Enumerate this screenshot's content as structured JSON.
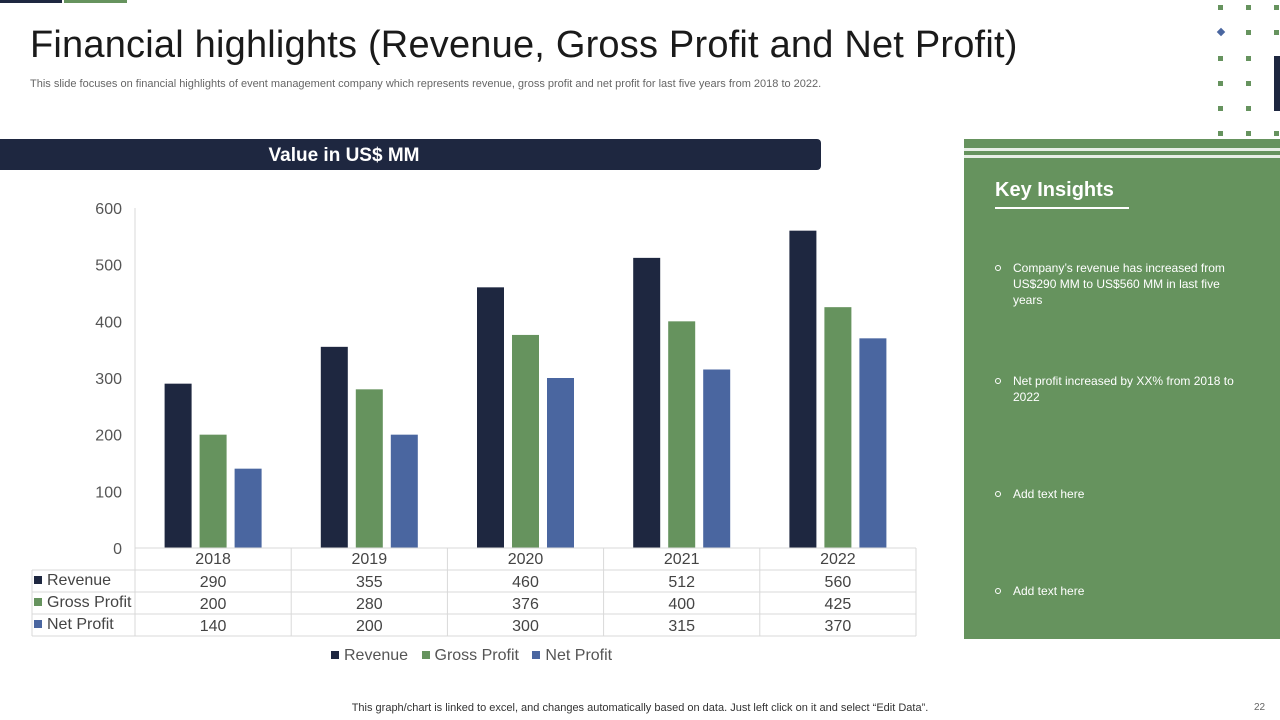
{
  "slide": {
    "title": "Financial highlights (Revenue, Gross Profit and Net Profit)",
    "subtitle": "This slide focuses on financial highlights of event management company which represents revenue, gross profit and net profit for last five  years from 2018 to  2022.",
    "footer": "This graph/chart is linked to excel,  and changes automatically based on data. Just left click on it and select “Edit Data”.",
    "page_number": "22"
  },
  "banner": {
    "label": "Value in US$ MM"
  },
  "insights": {
    "title": "Key Insights",
    "items": [
      "Company’s revenue  has increased from US$290  MM to US$560  MM in last five  years",
      "Net profit increased  by XX%  from 2018 to 2022",
      "Add text here",
      "Add text here"
    ]
  },
  "colors": {
    "revenue": "#1e2740",
    "gross_profit": "#66935e",
    "net_profit": "#4a66a0",
    "dark": "#1e2740",
    "green": "#66935e"
  },
  "chart_data": {
    "type": "bar",
    "title": "Value in US$ MM",
    "categories": [
      "2018",
      "2019",
      "2020",
      "2021",
      "2022"
    ],
    "series": [
      {
        "name": "Revenue",
        "values": [
          290,
          355,
          460,
          512,
          560
        ]
      },
      {
        "name": "Gross Profit",
        "values": [
          200,
          280,
          376,
          400,
          425
        ]
      },
      {
        "name": "Net Profit",
        "values": [
          140,
          200,
          300,
          315,
          370
        ]
      }
    ],
    "ylim": [
      0,
      600
    ],
    "yticks": [
      "0",
      "100",
      "200",
      "300",
      "400",
      "500",
      "600"
    ],
    "legend": "bottom",
    "data_table": true
  }
}
